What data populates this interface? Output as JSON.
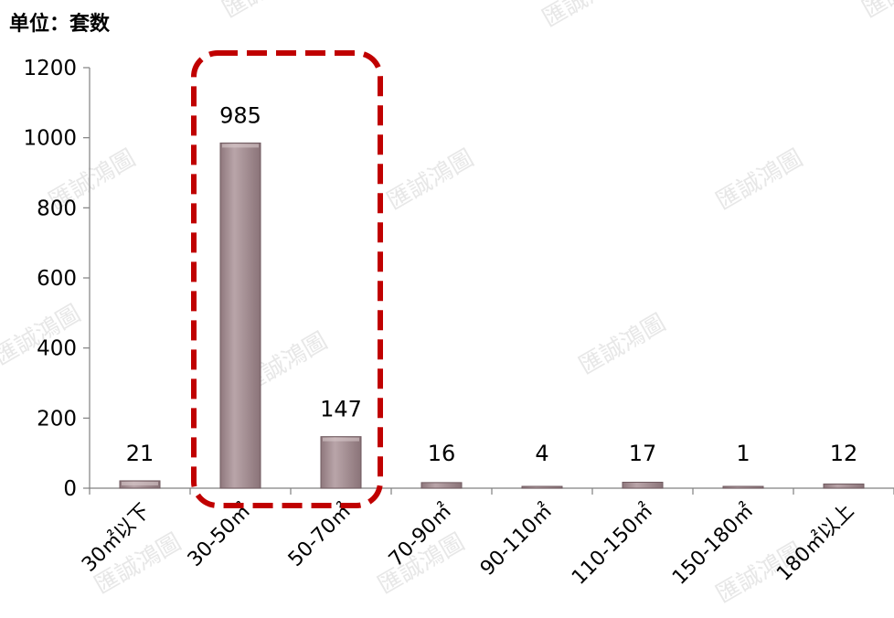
{
  "unit_label": "单位：套数",
  "watermark_text": "匯誠鴻圖",
  "colors": {
    "bar_fill": "#a89297",
    "bar_stroke": "#6f5a5f",
    "highlight_box": "#c00000",
    "axis": "#808080",
    "text": "#000000",
    "watermark": "#d3d3d3"
  },
  "chart_data": {
    "type": "bar",
    "categories": [
      "30㎡以下",
      "30-50㎡",
      "50-70㎡",
      "70-90㎡",
      "90-110㎡",
      "110-150㎡",
      "150-180㎡",
      "180㎡以上"
    ],
    "values": [
      21,
      985,
      147,
      16,
      4,
      17,
      1,
      12
    ],
    "value_labels": [
      "21",
      "985",
      "147",
      "16",
      "4",
      "17",
      "1",
      "12"
    ],
    "ylim": [
      0,
      1200
    ],
    "yticks": [
      0,
      200,
      400,
      600,
      800,
      1000,
      1200
    ],
    "ytick_labels": [
      "0",
      "200",
      "400",
      "600",
      "800",
      "1000",
      "1200"
    ],
    "highlighted_categories": [
      "30-50㎡",
      "50-70㎡"
    ],
    "highlight_style": "dashed red rounded box",
    "grid": false,
    "legend": "none"
  }
}
